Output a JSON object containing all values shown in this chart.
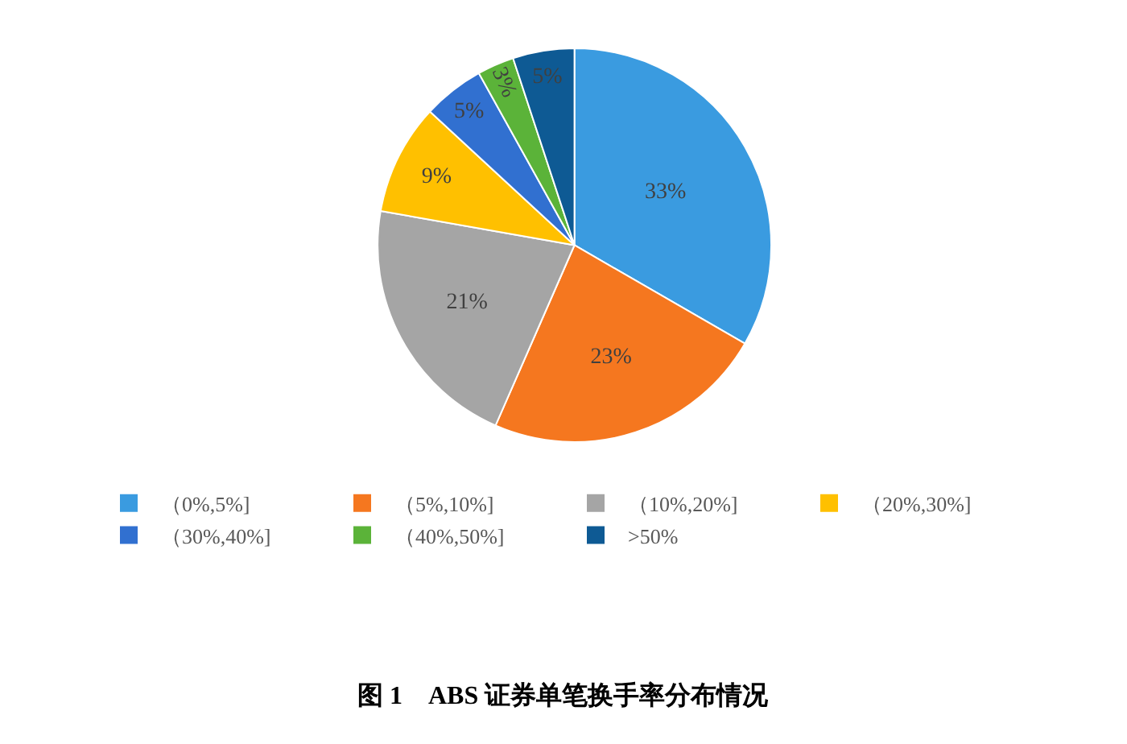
{
  "chart_data": {
    "type": "pie",
    "title": "图 1　ABS 证券单笔换手率分布情况",
    "categories": [
      "（0%,5%]",
      "（5%,10%]",
      "（10%,20%]",
      "（20%,30%]",
      "（30%,40%]",
      "（40%,50%]",
      ">50%"
    ],
    "values": [
      33,
      23,
      21,
      9,
      5,
      3,
      5
    ],
    "value_labels": [
      "33%",
      "23%",
      "21%",
      "9%",
      "5%",
      "3%",
      "5%"
    ],
    "colors": [
      "#3a9be0",
      "#f5771f",
      "#a5a5a5",
      "#ffc000",
      "#3170d0",
      "#5bb339",
      "#0e5a94"
    ],
    "legend": "bottom"
  }
}
